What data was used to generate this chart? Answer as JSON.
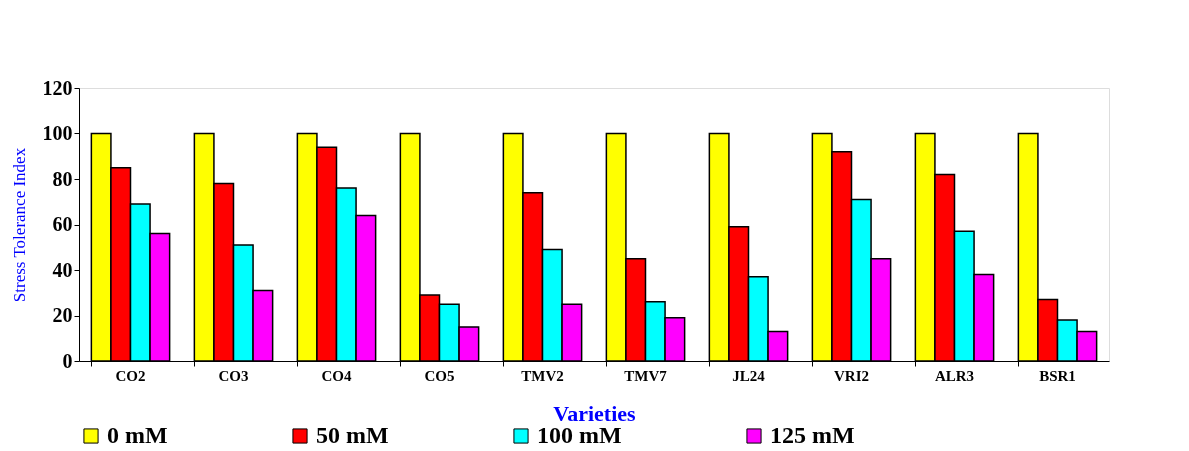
{
  "chart_data": {
    "type": "bar",
    "xlabel": "Varieties",
    "ylabel": "Stress Tolerance Index",
    "categories": [
      "CO2",
      "CO3",
      "CO4",
      "CO5",
      "TMV2",
      "TMV7",
      "JL24",
      "VRI2",
      "ALR3",
      "BSR1"
    ],
    "series": [
      {
        "name": "0 mM",
        "color": "#ffff00",
        "values": [
          100,
          100,
          100,
          100,
          100,
          100,
          100,
          100,
          100,
          100
        ]
      },
      {
        "name": "50 mM",
        "color": "#ff0000",
        "values": [
          85,
          78,
          94,
          29,
          74,
          45,
          59,
          92,
          82,
          27
        ]
      },
      {
        "name": "100 mM",
        "color": "#00ffff",
        "values": [
          69,
          51,
          76,
          25,
          49,
          26,
          37,
          71,
          57,
          18
        ]
      },
      {
        "name": "125 mM",
        "color": "#ff00ff",
        "values": [
          56,
          31,
          64,
          15,
          25,
          19,
          13,
          45,
          38,
          13
        ]
      }
    ],
    "ylim": [
      0,
      120
    ],
    "yticks": [
      0,
      20,
      40,
      60,
      80,
      100,
      120
    ],
    "grid": false,
    "legend": "bottom"
  }
}
